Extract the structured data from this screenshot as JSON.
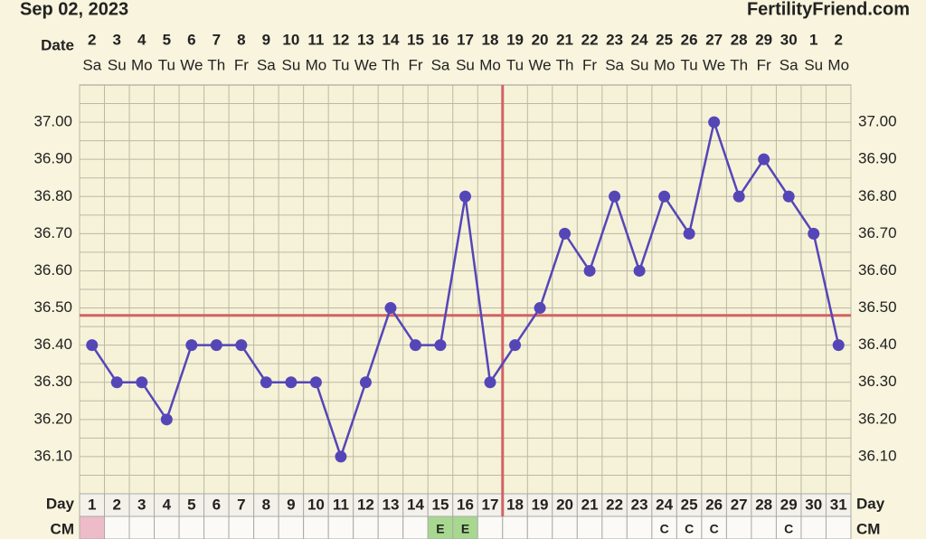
{
  "chart_data": {
    "type": "line",
    "title": "Sep 02, 2023",
    "site": "FertilityFriend.com",
    "date_label": "Date",
    "day_label": "Day",
    "cm_label": "CM",
    "dates": [
      "2",
      "3",
      "4",
      "5",
      "6",
      "7",
      "8",
      "9",
      "10",
      "11",
      "12",
      "13",
      "14",
      "15",
      "16",
      "17",
      "18",
      "19",
      "20",
      "21",
      "22",
      "23",
      "24",
      "25",
      "26",
      "27",
      "28",
      "29",
      "30",
      "1",
      "2"
    ],
    "weekdays": [
      "Sa",
      "Su",
      "Mo",
      "Tu",
      "We",
      "Th",
      "Fr",
      "Sa",
      "Su",
      "Mo",
      "Tu",
      "We",
      "Th",
      "Fr",
      "Sa",
      "Su",
      "Mo",
      "Tu",
      "We",
      "Th",
      "Fr",
      "Sa",
      "Su",
      "Mo",
      "Tu",
      "We",
      "Th",
      "Fr",
      "Sa",
      "Su",
      "Mo"
    ],
    "categories": [
      1,
      2,
      3,
      4,
      5,
      6,
      7,
      8,
      9,
      10,
      11,
      12,
      13,
      14,
      15,
      16,
      17,
      18,
      19,
      20,
      21,
      22,
      23,
      24,
      25,
      26,
      27,
      28,
      29,
      30,
      31
    ],
    "series": [
      {
        "name": "Temperature",
        "color": "#5546b8",
        "values": [
          36.4,
          36.3,
          36.3,
          36.2,
          36.4,
          36.4,
          36.4,
          36.3,
          36.3,
          36.3,
          36.1,
          36.3,
          36.5,
          36.4,
          36.4,
          36.8,
          36.3,
          36.4,
          36.5,
          36.7,
          36.6,
          36.8,
          36.6,
          36.8,
          36.7,
          37.0,
          36.8,
          36.9,
          36.8,
          36.7,
          36.4
        ]
      }
    ],
    "cm": [
      null,
      null,
      null,
      null,
      null,
      null,
      null,
      null,
      null,
      null,
      null,
      null,
      null,
      null,
      "E",
      "E",
      null,
      null,
      null,
      null,
      null,
      null,
      null,
      "C",
      "C",
      "C",
      null,
      null,
      "C",
      null,
      null
    ],
    "cm_colors": [
      "#eebcc8",
      null,
      null,
      null,
      null,
      null,
      null,
      null,
      null,
      null,
      null,
      null,
      null,
      null,
      "#a8d890",
      "#a8d890",
      null,
      null,
      null,
      null,
      null,
      null,
      null,
      null,
      null,
      null,
      null,
      null,
      null,
      null,
      null
    ],
    "coverline": 36.48,
    "ovulation_day": 18,
    "marker_line_color": "#d06464",
    "ylim": [
      36.0,
      37.1
    ],
    "yticks": [
      {
        "value": 36.1,
        "label": "36.10"
      },
      {
        "value": 36.2,
        "label": "36.20"
      },
      {
        "value": 36.3,
        "label": "36.30"
      },
      {
        "value": 36.4,
        "label": "36.40"
      },
      {
        "value": 36.5,
        "label": "36.50"
      },
      {
        "value": 36.6,
        "label": "36.60"
      },
      {
        "value": 36.7,
        "label": "36.70"
      },
      {
        "value": 36.8,
        "label": "36.80"
      },
      {
        "value": 36.9,
        "label": "36.90"
      },
      {
        "value": 37.0,
        "label": "37.00"
      }
    ],
    "grid": true
  }
}
